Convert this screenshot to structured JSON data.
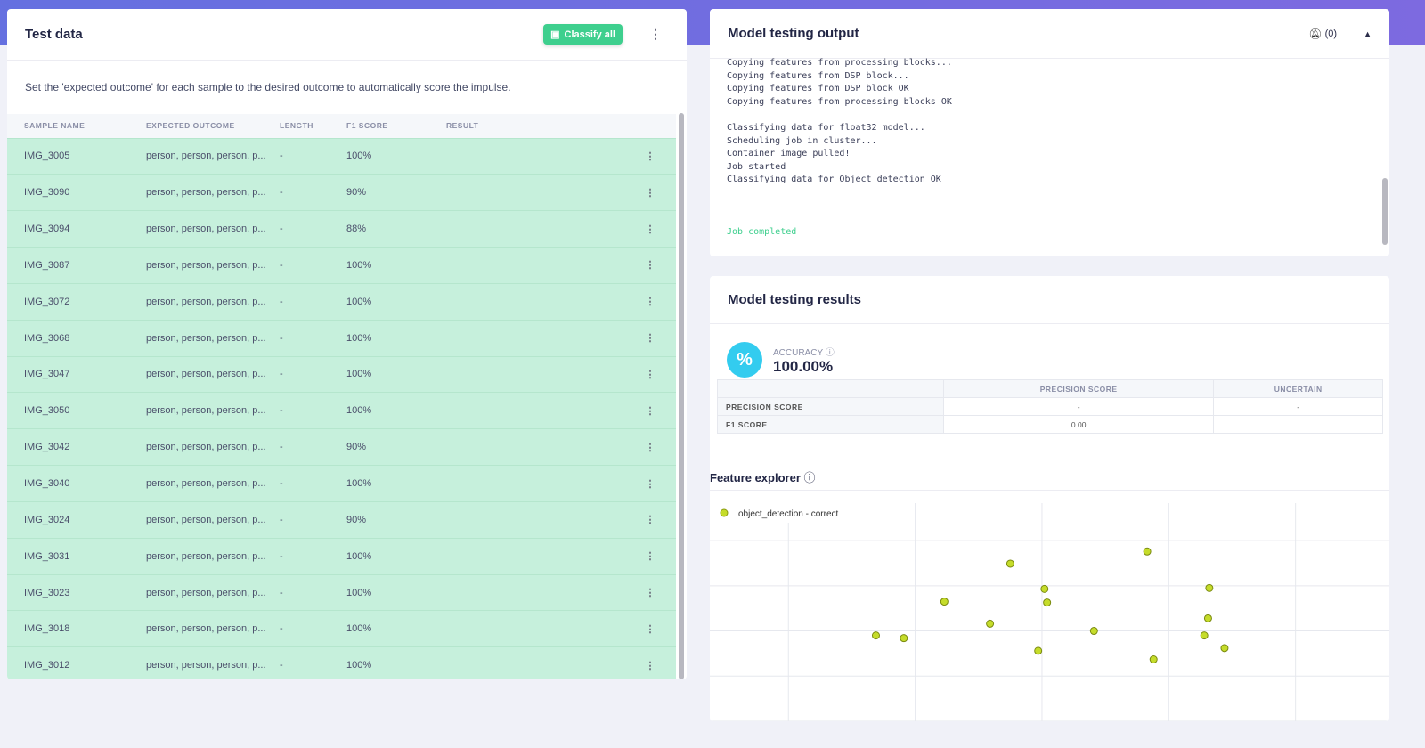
{
  "test_data": {
    "title": "Test data",
    "classify_all": "Classify all",
    "description": "Set the 'expected outcome' for each sample to the desired outcome to automatically score the impulse.",
    "columns": [
      "SAMPLE NAME",
      "EXPECTED OUTCOME",
      "LENGTH",
      "F1 SCORE",
      "RESULT"
    ],
    "rows": [
      {
        "name": "IMG_3005",
        "outcome": "person, person, person, p...",
        "length": "-",
        "f1": "100%"
      },
      {
        "name": "IMG_3090",
        "outcome": "person, person, person, p...",
        "length": "-",
        "f1": "90%"
      },
      {
        "name": "IMG_3094",
        "outcome": "person, person, person, p...",
        "length": "-",
        "f1": "88%"
      },
      {
        "name": "IMG_3087",
        "outcome": "person, person, person, p...",
        "length": "-",
        "f1": "100%"
      },
      {
        "name": "IMG_3072",
        "outcome": "person, person, person, p...",
        "length": "-",
        "f1": "100%"
      },
      {
        "name": "IMG_3068",
        "outcome": "person, person, person, p...",
        "length": "-",
        "f1": "100%"
      },
      {
        "name": "IMG_3047",
        "outcome": "person, person, person, p...",
        "length": "-",
        "f1": "100%"
      },
      {
        "name": "IMG_3050",
        "outcome": "person, person, person, p...",
        "length": "-",
        "f1": "100%"
      },
      {
        "name": "IMG_3042",
        "outcome": "person, person, person, p...",
        "length": "-",
        "f1": "90%"
      },
      {
        "name": "IMG_3040",
        "outcome": "person, person, person, p...",
        "length": "-",
        "f1": "100%"
      },
      {
        "name": "IMG_3024",
        "outcome": "person, person, person, p...",
        "length": "-",
        "f1": "90%"
      },
      {
        "name": "IMG_3031",
        "outcome": "person, person, person, p...",
        "length": "-",
        "f1": "100%"
      },
      {
        "name": "IMG_3023",
        "outcome": "person, person, person, p...",
        "length": "-",
        "f1": "100%"
      },
      {
        "name": "IMG_3018",
        "outcome": "person, person, person, p...",
        "length": "-",
        "f1": "100%"
      },
      {
        "name": "IMG_3012",
        "outcome": "person, person, person, p...",
        "length": "-",
        "f1": "100%"
      }
    ]
  },
  "output": {
    "title": "Model testing output",
    "notifications": "(0)",
    "log": [
      "Copying features from processing blocks...",
      "Copying features from DSP block...",
      "Copying features from DSP block OK",
      "Copying features from processing blocks OK",
      "",
      "Classifying data for float32 model...",
      "Scheduling job in cluster...",
      "Container image pulled!",
      "Job started",
      "Classifying data for Object detection OK",
      "",
      "",
      ""
    ],
    "completed": "Job completed"
  },
  "results": {
    "title": "Model testing results",
    "accuracy_label": "ACCURACY",
    "accuracy": "100.00%",
    "cols": [
      "PRECISION SCORE",
      "UNCERTAIN"
    ],
    "rows": [
      {
        "label": "PRECISION SCORE",
        "a": "-",
        "b": "-"
      },
      {
        "label": "F1 SCORE",
        "a": "0.00",
        "b": ""
      }
    ]
  },
  "feature_explorer": {
    "title": "Feature explorer"
  },
  "chart_data": {
    "type": "scatter",
    "legend": [
      "object_detection - correct"
    ],
    "legend_placement": "top-left",
    "color": "#c5dc2a",
    "xlim": [
      0.38,
      5.74
    ],
    "ylim": [
      0,
      4.83
    ],
    "grid": true,
    "points": [
      [
        1.69,
        1.9
      ],
      [
        1.91,
        1.84
      ],
      [
        2.23,
        2.65
      ],
      [
        2.59,
        2.16
      ],
      [
        2.75,
        3.49
      ],
      [
        2.97,
        1.56
      ],
      [
        3.02,
        2.93
      ],
      [
        3.04,
        2.63
      ],
      [
        3.41,
        2.0
      ],
      [
        3.83,
        3.76
      ],
      [
        3.88,
        1.37
      ],
      [
        4.28,
        1.9
      ],
      [
        4.31,
        2.28
      ],
      [
        4.32,
        2.95
      ],
      [
        4.44,
        1.62
      ]
    ]
  }
}
